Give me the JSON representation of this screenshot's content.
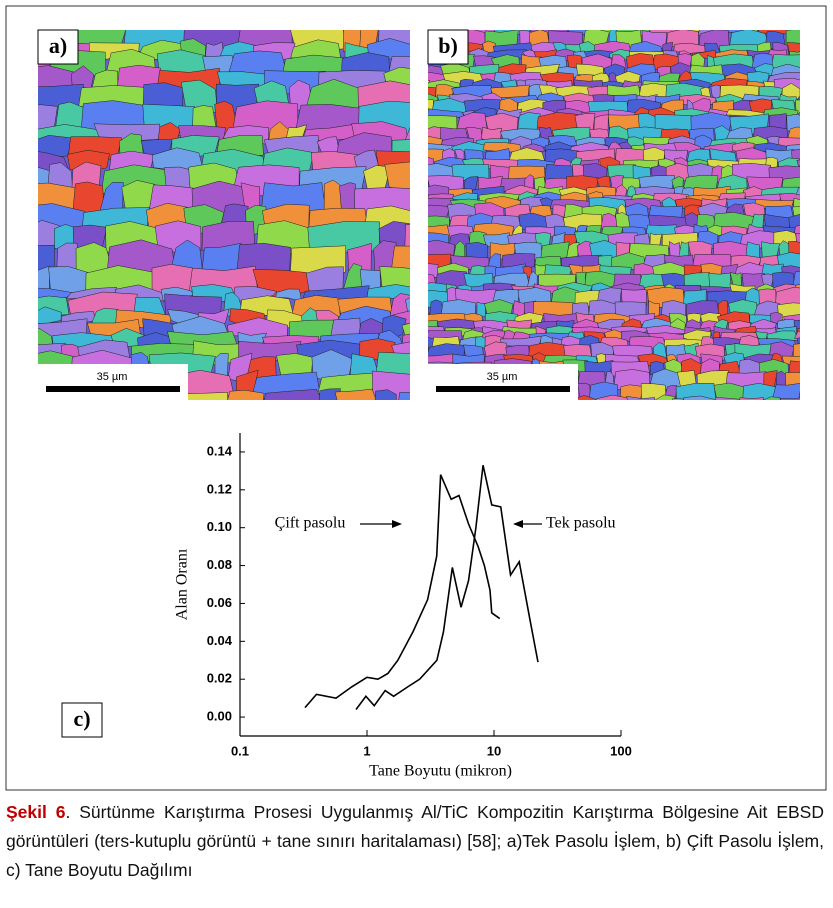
{
  "panels": [
    {
      "label": "a)",
      "scale_bar": "35 µm"
    },
    {
      "label": "b)",
      "scale_bar": "35 µm"
    }
  ],
  "chart_data": {
    "type": "line",
    "panel_label": "c)",
    "xlabel": "Tane Boyutu (mikron)",
    "ylabel": "Alan Oranı",
    "xscale": "log",
    "xlim": [
      0.1,
      100
    ],
    "xticks": [
      0.1,
      1,
      10,
      100
    ],
    "ylim": [
      -0.01,
      0.15
    ],
    "yticks": [
      {
        "value": 0,
        "label": "0.00"
      },
      {
        "value": 0.02,
        "label": "0.02"
      },
      {
        "value": 0.04,
        "label": "0.04"
      },
      {
        "value": 0.06,
        "label": "0.06"
      },
      {
        "value": 0.08,
        "label": "0.08"
      },
      {
        "value": 0.1,
        "label": "0.10"
      },
      {
        "value": 0.12,
        "label": "0.12"
      },
      {
        "value": 0.14,
        "label": "0.14"
      }
    ],
    "series": [
      {
        "name": "Çift pasolu",
        "color": "#000000",
        "x": [
          0.325,
          0.4,
          0.57,
          0.76,
          1.0,
          1.22,
          1.46,
          1.75,
          2.3,
          3.0,
          3.54,
          3.8,
          4.6,
          5.3,
          6.3,
          7.5,
          8.4,
          9.3,
          9.6,
          11.1
        ],
        "values": [
          0.005,
          0.012,
          0.01,
          0.016,
          0.021,
          0.02,
          0.023,
          0.03,
          0.045,
          0.062,
          0.085,
          0.128,
          0.115,
          0.117,
          0.102,
          0.09,
          0.08,
          0.067,
          0.055,
          0.052
        ]
      },
      {
        "name": "Tek pasolu",
        "color": "#000000",
        "x": [
          0.82,
          0.98,
          1.14,
          1.39,
          1.62,
          2.1,
          2.6,
          3.55,
          4.0,
          4.7,
          5.5,
          6.3,
          7.2,
          8.2,
          9.6,
          11.3,
          13.5,
          15.8,
          19,
          22.2
        ],
        "values": [
          0.004,
          0.011,
          0.006,
          0.014,
          0.011,
          0.016,
          0.02,
          0.03,
          0.045,
          0.079,
          0.058,
          0.072,
          0.1,
          0.133,
          0.112,
          0.111,
          0.075,
          0.082,
          0.053,
          0.029
        ]
      }
    ]
  },
  "caption": {
    "label": "Şekil 6",
    "text": ". Sürtünme Karıştırma Prosesi Uygulanmış Al/TiC Kompozitin Karıştırma Bölgesine Ait EBSD görüntüleri (ters-kutuplu görüntü + tane sınırı haritalaması) [58]; a)Tek Pasolu İşlem, b) Çift Pasolu İşlem, c) Tane Boyutu Dağılımı"
  }
}
